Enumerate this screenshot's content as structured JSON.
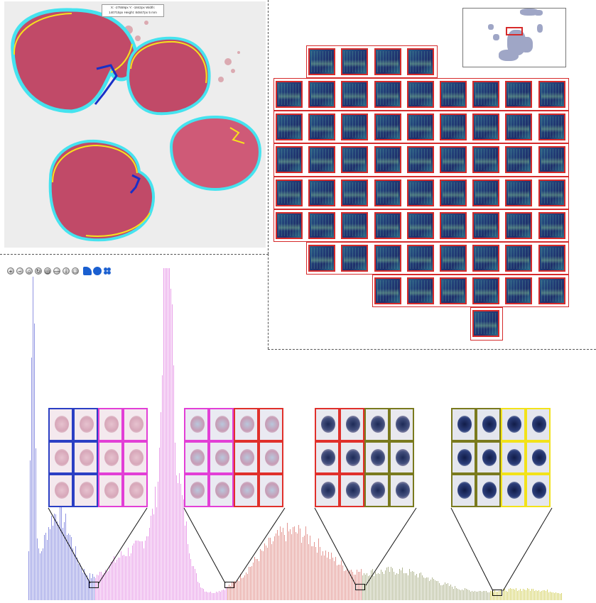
{
  "slide_viewer": {
    "coords_line1": "X: -27559px Y: -1842px Width:",
    "coords_line2": "140715px Height: 84847px 5 mm"
  },
  "toolbar": {
    "buttons": [
      {
        "name": "zoom-in-icon",
        "glyph": "+"
      },
      {
        "name": "zoom-out-icon",
        "glyph": "−"
      },
      {
        "name": "home-icon",
        "glyph": "⌂"
      },
      {
        "name": "rotate-icon",
        "glyph": "↻"
      },
      {
        "name": "fit-icon",
        "glyph": "◎"
      },
      {
        "name": "minus-icon",
        "glyph": "—"
      },
      {
        "name": "info-icon",
        "glyph": "i"
      },
      {
        "name": "select-icon",
        "glyph": "□"
      }
    ]
  },
  "colors": {
    "tile_border": "#d62a2a",
    "class_blue": "#2b3fc4",
    "class_magenta": "#e23fd6",
    "class_red": "#e0302b",
    "class_olive": "#7a7a1e",
    "class_yellow": "#f2e21a",
    "annotation_cyan": "#45e3ef",
    "annotation_yellow": "#f7e21c",
    "annotation_blue": "#1830c8"
  },
  "histogram": {
    "segments": [
      {
        "class": "blue",
        "color": "#6a6fd8"
      },
      {
        "class": "magenta",
        "color": "#e07be0"
      },
      {
        "class": "red",
        "color": "#d9736c"
      },
      {
        "class": "olive",
        "color": "#9aa070"
      },
      {
        "class": "yellow",
        "color": "#c9c63a"
      }
    ]
  },
  "cell_grids": [
    {
      "left_color": "#2b3fc4",
      "right_color": "#e23fd6",
      "tone": "pink"
    },
    {
      "left_color": "#e23fd6",
      "right_color": "#e0302b",
      "tone": "lavender"
    },
    {
      "left_color": "#e0302b",
      "right_color": "#7a7a1e",
      "tone": "dark"
    },
    {
      "left_color": "#7a7a1e",
      "right_color": "#f2e21a",
      "tone": "darker"
    }
  ]
}
